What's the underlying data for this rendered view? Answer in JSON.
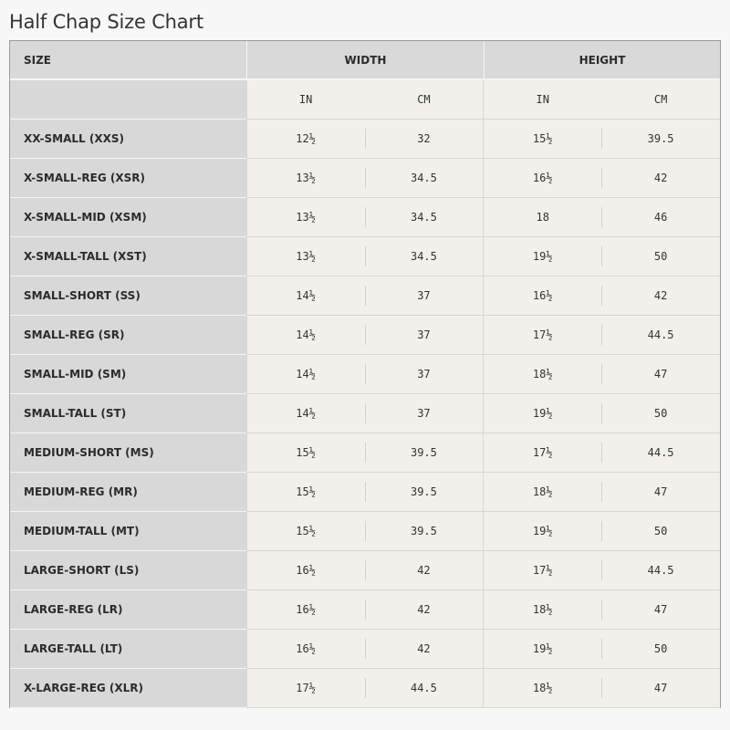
{
  "title": "Half Chap Size Chart",
  "headers": {
    "size": "SIZE",
    "width": "WIDTH",
    "height": "HEIGHT",
    "units": [
      "IN",
      "CM",
      "IN",
      "CM"
    ]
  },
  "rows": [
    {
      "size": "XX-SMALL (XXS)",
      "w_in": "12½",
      "w_cm": "32",
      "h_in": "15½",
      "h_cm": "39.5"
    },
    {
      "size": "X-SMALL-REG (XSR)",
      "w_in": "13½",
      "w_cm": "34.5",
      "h_in": "16½",
      "h_cm": "42"
    },
    {
      "size": "X-SMALL-MID (XSM)",
      "w_in": "13½",
      "w_cm": "34.5",
      "h_in": "18",
      "h_cm": "46"
    },
    {
      "size": "X-SMALL-TALL (XST)",
      "w_in": "13½",
      "w_cm": "34.5",
      "h_in": "19½",
      "h_cm": "50"
    },
    {
      "size": "SMALL-SHORT (SS)",
      "w_in": "14½",
      "w_cm": "37",
      "h_in": "16½",
      "h_cm": "42"
    },
    {
      "size": "SMALL-REG (SR)",
      "w_in": "14½",
      "w_cm": "37",
      "h_in": "17½",
      "h_cm": "44.5"
    },
    {
      "size": "SMALL-MID (SM)",
      "w_in": "14½",
      "w_cm": "37",
      "h_in": "18½",
      "h_cm": "47"
    },
    {
      "size": "SMALL-TALL (ST)",
      "w_in": "14½",
      "w_cm": "37",
      "h_in": "19½",
      "h_cm": "50"
    },
    {
      "size": "MEDIUM-SHORT (MS)",
      "w_in": "15½",
      "w_cm": "39.5",
      "h_in": "17½",
      "h_cm": "44.5"
    },
    {
      "size": "MEDIUM-REG (MR)",
      "w_in": "15½",
      "w_cm": "39.5",
      "h_in": "18½",
      "h_cm": "47"
    },
    {
      "size": "MEDIUM-TALL (MT)",
      "w_in": "15½",
      "w_cm": "39.5",
      "h_in": "19½",
      "h_cm": "50"
    },
    {
      "size": "LARGE-SHORT (LS)",
      "w_in": "16½",
      "w_cm": "42",
      "h_in": "17½",
      "h_cm": "44.5"
    },
    {
      "size": "LARGE-REG (LR)",
      "w_in": "16½",
      "w_cm": "42",
      "h_in": "18½",
      "h_cm": "47"
    },
    {
      "size": "LARGE-TALL (LT)",
      "w_in": "16½",
      "w_cm": "42",
      "h_in": "19½",
      "h_cm": "50"
    },
    {
      "size": "X-LARGE-REG (XLR)",
      "w_in": "17½",
      "w_cm": "44.5",
      "h_in": "18½",
      "h_cm": "47"
    }
  ]
}
